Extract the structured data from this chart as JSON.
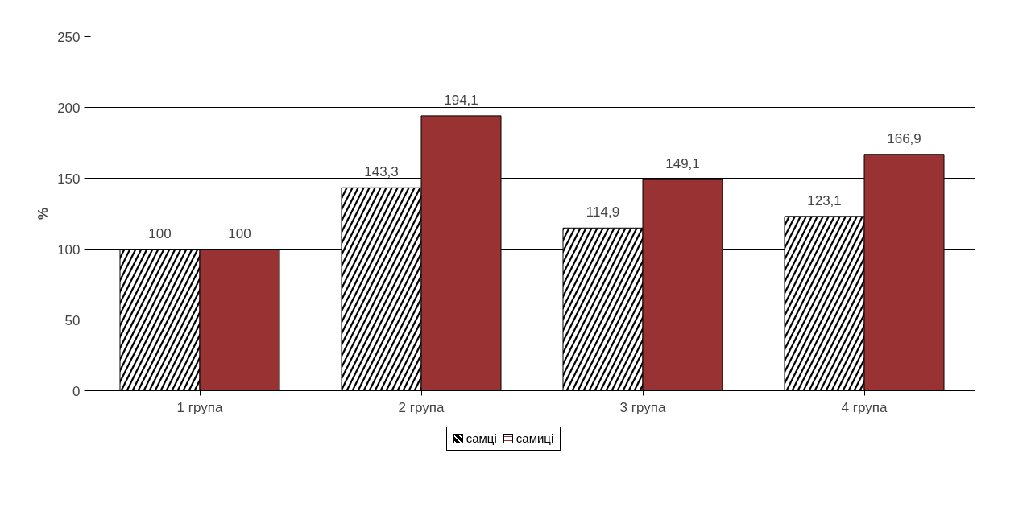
{
  "chart_data": {
    "type": "bar",
    "ylabel": "%",
    "categories": [
      "1 група",
      "2 група",
      "3 група",
      "4 група"
    ],
    "series": [
      {
        "name": "самці",
        "color": "#000000",
        "values": [
          100,
          143.3,
          114.9,
          123.1
        ],
        "value_labels": [
          "100",
          "143,3",
          "114,9",
          "123,1"
        ]
      },
      {
        "name": "самиці",
        "color": "#993333",
        "values": [
          100,
          194.1,
          149.1,
          166.9
        ],
        "value_labels": [
          "100",
          "194,1",
          "149,1",
          "166,9"
        ]
      }
    ],
    "ylim": [
      0,
      250
    ],
    "yticks": [
      0,
      50,
      100,
      150,
      200,
      250
    ],
    "grid": "y",
    "legend": "bottom"
  }
}
